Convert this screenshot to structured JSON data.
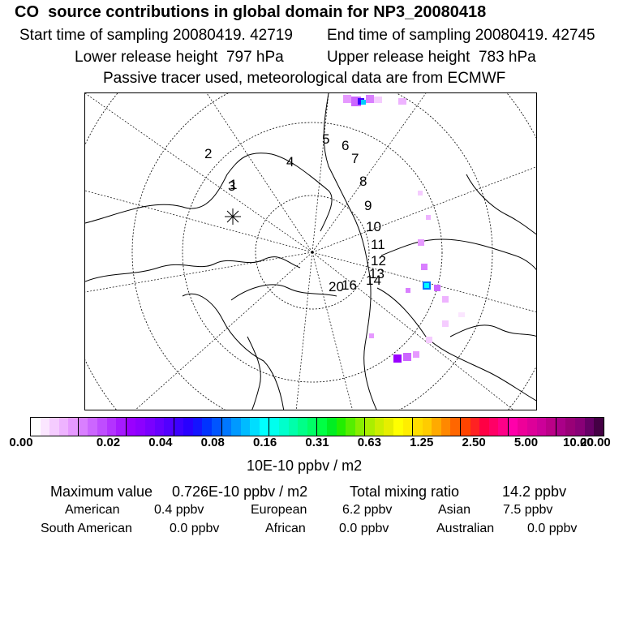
{
  "header": {
    "title": "CO  source contributions in global domain for NP3_20080418",
    "start_label": "Start time of sampling 20080419. 42719",
    "end_label": "End time of sampling 20080419. 42745",
    "lower_label": "Lower release height  797 hPa",
    "upper_label": "Upper release height  783 hPa",
    "tracer_note": "Passive tracer used, meteorological data are from ECMWF"
  },
  "map": {
    "trajectory_labels": [
      "1",
      "2",
      "3",
      "4",
      "5",
      "6",
      "7",
      "8",
      "9",
      "10",
      "11",
      "12",
      "13",
      "14",
      "20",
      "16"
    ],
    "projection": "north-polar-stereographic",
    "source_color": "#cc33ff",
    "max_color": "#00cccc"
  },
  "colorbar": {
    "tick_labels": [
      "0.00",
      "0.02",
      "0.04",
      "0.08",
      "0.16",
      "0.31",
      "0.63",
      "1.25",
      "2.50",
      "5.00",
      "10.00",
      "20.00"
    ],
    "unit": "10E-10 ppbv / m2",
    "colors": [
      "#ffffff",
      "#fbe6ff",
      "#f5ccff",
      "#eeb3ff",
      "#e699ff",
      "#d97fff",
      "#cc66ff",
      "#bf4dff",
      "#b333ff",
      "#a61aff",
      "#9900ff",
      "#8c00ff",
      "#7a00ff",
      "#6600ff",
      "#5200ff",
      "#3d00ff",
      "#2900ff",
      "#1414ff",
      "#0033ff",
      "#0055ff",
      "#0077ff",
      "#0099ff",
      "#00bbff",
      "#00ddff",
      "#00ffff",
      "#00ffee",
      "#00ffcc",
      "#00ffaa",
      "#00ff88",
      "#00ff66",
      "#00ff44",
      "#00ee22",
      "#22ee00",
      "#55ee00",
      "#88ee00",
      "#aaee00",
      "#ccee00",
      "#e6ee00",
      "#ffff00",
      "#ffee00",
      "#ffdd00",
      "#ffcc00",
      "#ffaa00",
      "#ff8800",
      "#ff6600",
      "#ff4400",
      "#ff2222",
      "#ff0044",
      "#ff0066",
      "#ff0088",
      "#ff00aa",
      "#ee0099",
      "#dd0099",
      "#cc0099",
      "#bb0088",
      "#aa0088",
      "#990077",
      "#880077",
      "#660066",
      "#440044"
    ]
  },
  "stats": {
    "max_label": "Maximum value",
    "max_value": "0.726E-10 ppbv / m2",
    "total_label": "Total mixing ratio",
    "total_value": "14.2 ppbv",
    "regions": [
      {
        "name": "American",
        "value": "0.4 ppbv"
      },
      {
        "name": "European",
        "value": "6.2 ppbv"
      },
      {
        "name": "Asian",
        "value": "7.5 ppbv"
      },
      {
        "name": "South American",
        "value": "0.0 ppbv"
      },
      {
        "name": "African",
        "value": "0.0 ppbv"
      },
      {
        "name": "Australian",
        "value": "0.0 ppbv"
      }
    ]
  }
}
